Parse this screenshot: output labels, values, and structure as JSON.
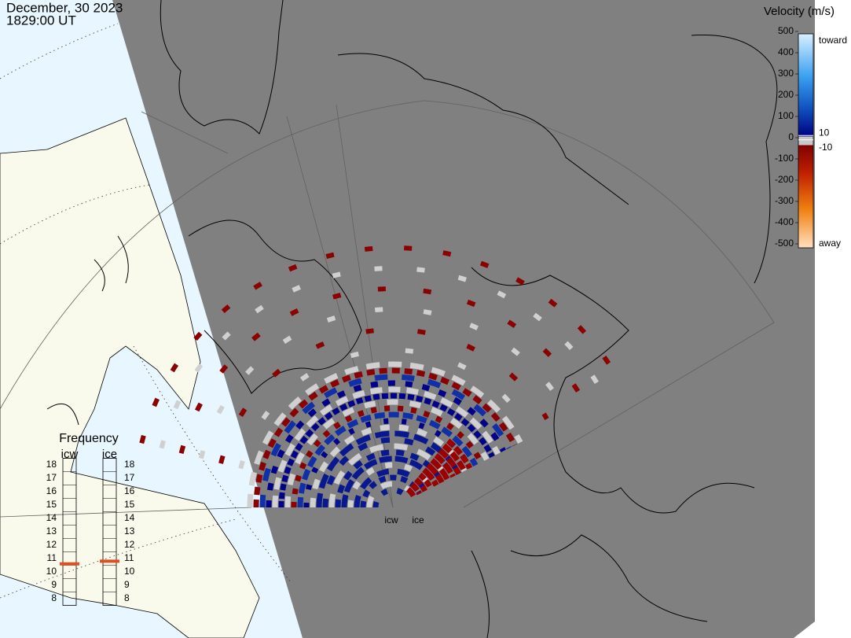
{
  "header": {
    "date": "December, 30 2023",
    "time": "1829:00 UT"
  },
  "colorbar": {
    "title": "Velocity (m/s)",
    "lim": [
      -500,
      500
    ],
    "ticks": [
      500,
      400,
      300,
      200,
      100,
      0,
      -100,
      -200,
      -300,
      -400,
      -500
    ],
    "inner_ticks": [
      10,
      -10
    ],
    "toward": "toward",
    "away": "away"
  },
  "frequency": {
    "title": "Frequency",
    "lim": [
      8,
      18
    ],
    "ticks": [
      18,
      17,
      16,
      15,
      14,
      13,
      12,
      11,
      10,
      9,
      8
    ],
    "radars": [
      {
        "name": "icw",
        "value": 10.6
      },
      {
        "name": "ice",
        "value": 10.8
      }
    ]
  },
  "radar_labels": [
    "icw",
    "ice"
  ]
}
